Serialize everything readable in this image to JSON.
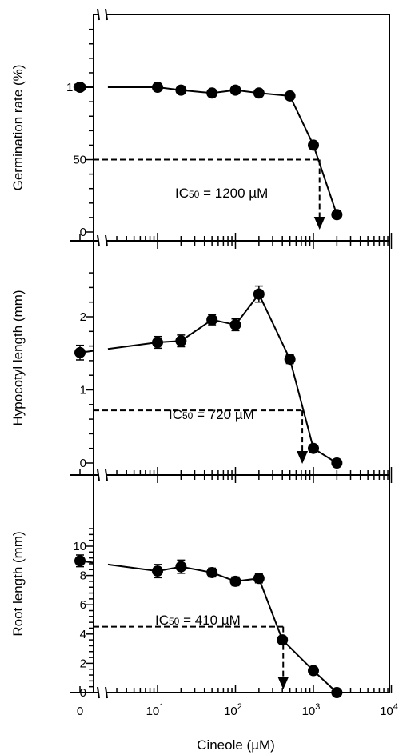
{
  "chart_data": [
    {
      "type": "line",
      "panel": "germination",
      "ylabel": "Germination rate (%)",
      "ylim": [
        0,
        145
      ],
      "yticks": [
        0,
        50,
        100
      ],
      "x_scale": "log with broken zero",
      "series": [
        {
          "x": [
            0,
            10,
            20,
            50,
            100,
            200,
            500,
            1000,
            2000
          ],
          "y": [
            100,
            100,
            98,
            96,
            98,
            96,
            94,
            60,
            12
          ],
          "err": [
            0,
            0,
            0,
            0,
            0,
            0,
            0,
            0,
            0
          ]
        }
      ],
      "ic50": {
        "value": 1200,
        "level": 50,
        "label": "IC50 = 1200 µM",
        "label_main": "IC",
        "label_sub": "50",
        "label_rest": " = 1200 µM"
      }
    },
    {
      "type": "line",
      "panel": "hypocotyl",
      "ylabel": "Hypocotyl length (mm)",
      "ylim": [
        0,
        2.7
      ],
      "yticks": [
        0,
        1,
        2
      ],
      "series": [
        {
          "x": [
            0,
            10,
            20,
            50,
            100,
            200,
            500,
            1000,
            2000
          ],
          "y": [
            1.51,
            1.65,
            1.67,
            1.96,
            1.89,
            2.31,
            1.42,
            0.2,
            0.0
          ],
          "err": [
            0.1,
            0.08,
            0.08,
            0.07,
            0.08,
            0.11,
            0.06,
            0.05,
            0.02
          ]
        }
      ],
      "ic50": {
        "value": 720,
        "level": 0.72,
        "label": "IC50 = 720 µM",
        "label_main": "IC",
        "label_sub": "50",
        "label_rest": " = 720 µM"
      }
    },
    {
      "type": "line",
      "panel": "root",
      "ylabel": "Root length (mm)",
      "ylim": [
        0,
        11.4
      ],
      "yticks": [
        0,
        2,
        4,
        6,
        8,
        10
      ],
      "xlabel": "Cineole (µM)",
      "xticks": [
        "0",
        "10",
        "10",
        "10",
        "10"
      ],
      "xtick_exps": [
        "",
        "1",
        "2",
        "3",
        "4"
      ],
      "series": [
        {
          "x": [
            0,
            10,
            20,
            50,
            100,
            200,
            400,
            1000,
            2000
          ],
          "y": [
            9.0,
            8.3,
            8.6,
            8.2,
            7.6,
            7.8,
            3.6,
            1.5,
            0.0
          ],
          "err": [
            0.4,
            0.45,
            0.45,
            0.3,
            0.3,
            0.3,
            0.2,
            0.15,
            0.1
          ]
        }
      ],
      "ic50": {
        "value": 410,
        "level": 4.5,
        "label": "IC50 = 410 µM",
        "label_main": "IC",
        "label_sub": "50",
        "label_rest": " = 410 µM"
      }
    }
  ]
}
